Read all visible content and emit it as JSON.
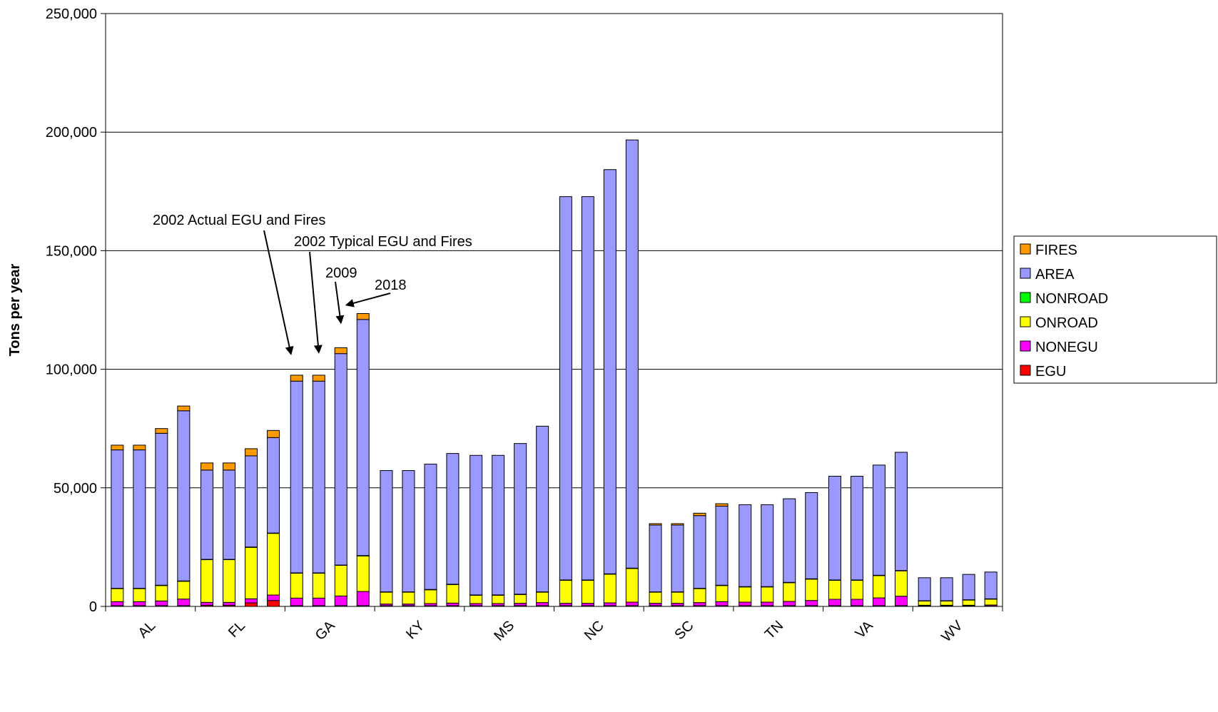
{
  "chart_data": {
    "type": "bar",
    "stacked": true,
    "title": "",
    "xlabel": "",
    "ylabel": "Tons per year",
    "ylim": [
      0,
      250000
    ],
    "yticks": [
      0,
      50000,
      100000,
      150000,
      200000,
      250000
    ],
    "ytick_labels": [
      "0",
      "50,000",
      "100,000",
      "150,000",
      "200,000",
      "250,000"
    ],
    "grid": true,
    "legend_position": "right",
    "categories": [
      "AL",
      "FL",
      "GA",
      "KY",
      "MS",
      "NC",
      "SC",
      "TN",
      "VA",
      "WV"
    ],
    "bars_per_category": 4,
    "series": [
      {
        "name": "EGU",
        "color": "#ff0000",
        "values": [
          [
            300,
            300,
            300,
            300
          ],
          [
            500,
            500,
            1500,
            2500
          ],
          [
            300,
            300,
            300,
            300
          ],
          [
            300,
            300,
            300,
            300
          ],
          [
            300,
            300,
            300,
            300
          ],
          [
            300,
            300,
            300,
            300
          ],
          [
            300,
            300,
            300,
            300
          ],
          [
            300,
            300,
            300,
            300
          ],
          [
            300,
            300,
            300,
            300
          ],
          [
            200,
            200,
            200,
            200
          ]
        ]
      },
      {
        "name": "NONEGU",
        "color": "#ff00ff",
        "values": [
          [
            1700,
            1700,
            2000,
            2800
          ],
          [
            1200,
            1200,
            1700,
            2300
          ],
          [
            3200,
            3200,
            4100,
            6000
          ],
          [
            700,
            700,
            900,
            1100
          ],
          [
            900,
            900,
            1000,
            1300
          ],
          [
            1000,
            1000,
            1200,
            1500
          ],
          [
            1000,
            1000,
            1300,
            1700
          ],
          [
            1500,
            1500,
            1800,
            2200
          ],
          [
            2700,
            2700,
            3300,
            4000
          ],
          [
            300,
            300,
            300,
            400
          ]
        ]
      },
      {
        "name": "ONROAD",
        "color": "#ffff00",
        "values": [
          [
            5500,
            5500,
            6500,
            7500
          ],
          [
            18000,
            18000,
            21700,
            26000
          ],
          [
            10500,
            10500,
            12900,
            15000
          ],
          [
            5000,
            5000,
            5800,
            7800
          ],
          [
            3500,
            3500,
            3700,
            4400
          ],
          [
            9700,
            9700,
            12100,
            14200
          ],
          [
            4700,
            4700,
            5900,
            6800
          ],
          [
            6400,
            6400,
            7900,
            9000
          ],
          [
            8000,
            8000,
            9400,
            10700
          ],
          [
            1800,
            1800,
            2200,
            2500
          ]
        ]
      },
      {
        "name": "NONROAD",
        "color": "#00ff00",
        "values": [
          [
            150,
            150,
            150,
            150
          ],
          [
            150,
            150,
            150,
            150
          ],
          [
            150,
            150,
            150,
            150
          ],
          [
            150,
            150,
            150,
            150
          ],
          [
            150,
            150,
            150,
            150
          ],
          [
            150,
            150,
            150,
            150
          ],
          [
            150,
            150,
            150,
            150
          ],
          [
            150,
            150,
            150,
            150
          ],
          [
            150,
            150,
            150,
            150
          ],
          [
            100,
            100,
            100,
            100
          ]
        ]
      },
      {
        "name": "AREA",
        "color": "#9999ff",
        "values": [
          [
            58350,
            58350,
            64050,
            71750
          ],
          [
            37650,
            37650,
            38450,
            40250
          ],
          [
            80850,
            80850,
            89150,
            99550
          ],
          [
            51150,
            51150,
            52850,
            55150
          ],
          [
            58850,
            58850,
            63550,
            69850
          ],
          [
            161650,
            161650,
            170450,
            180550
          ],
          [
            28150,
            28150,
            30650,
            33350
          ],
          [
            34550,
            34550,
            35250,
            36350
          ],
          [
            43750,
            43750,
            46450,
            49850
          ],
          [
            9700,
            9700,
            10700,
            11300
          ]
        ]
      },
      {
        "name": "FIRES",
        "color": "#ff9900",
        "values": [
          [
            2000,
            2000,
            2000,
            2000
          ],
          [
            3000,
            3000,
            3000,
            3000
          ],
          [
            2500,
            2500,
            2500,
            2500
          ],
          [
            0,
            0,
            0,
            0
          ],
          [
            0,
            0,
            0,
            0
          ],
          [
            0,
            0,
            0,
            0
          ],
          [
            600,
            600,
            1000,
            1000
          ],
          [
            0,
            0,
            0,
            0
          ],
          [
            0,
            0,
            0,
            0
          ],
          [
            0,
            0,
            0,
            0
          ]
        ]
      }
    ],
    "annotations": [
      {
        "text": "2002 Actual EGU and Fires",
        "category": "GA",
        "bar": 0
      },
      {
        "text": "2002 Typical EGU and Fires",
        "category": "GA",
        "bar": 1
      },
      {
        "text": "2009",
        "category": "GA",
        "bar": 2
      },
      {
        "text": "2018",
        "category": "GA",
        "bar": 3
      }
    ]
  }
}
